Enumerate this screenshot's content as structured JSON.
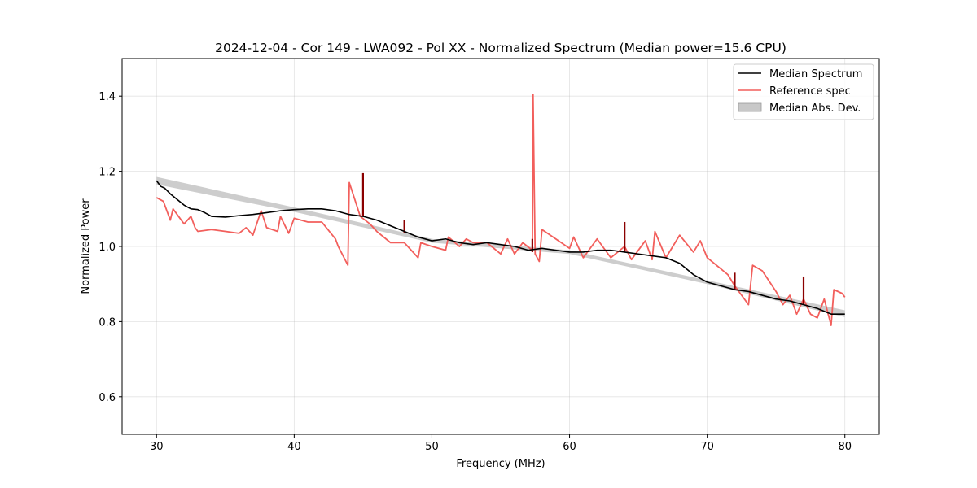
{
  "chart_data": {
    "type": "line",
    "title": "2024-12-04 - Cor 149 - LWA092 - Pol XX - Normalized Spectrum (Median power=15.6 CPU)",
    "xlabel": "Frequency (MHz)",
    "ylabel": "Normalized Power",
    "xlim": [
      27.5,
      82.5
    ],
    "ylim": [
      0.5,
      1.5
    ],
    "x_ticks": [
      30,
      40,
      50,
      60,
      70,
      80
    ],
    "y_ticks": [
      0.6,
      0.8,
      1.0,
      1.2,
      1.4
    ],
    "x_tick_labels": [
      "30",
      "40",
      "50",
      "60",
      "70",
      "80"
    ],
    "y_tick_labels": [
      "0.6",
      "0.8",
      "1.0",
      "1.2",
      "1.4"
    ],
    "grid": true,
    "legend_position": "upper-right",
    "legend": [
      "Median Spectrum",
      "Reference spec",
      "Median Abs. Dev."
    ],
    "colors": {
      "median": "#000000",
      "reference": "#f25f5c",
      "mad_fill": "#c8c8c8",
      "spike": "#8b0000"
    },
    "series": [
      {
        "name": "Median Spectrum",
        "x": [
          30.0,
          30.3,
          30.6,
          31.0,
          31.5,
          32.0,
          32.5,
          33.0,
          33.5,
          34.0,
          35.0,
          36.0,
          37.0,
          38.0,
          39.0,
          40.0,
          41.0,
          42.0,
          43.0,
          44.0,
          45.0,
          46.0,
          47.0,
          48.0,
          49.0,
          50.0,
          51.0,
          52.0,
          53.0,
          54.0,
          55.0,
          56.0,
          57.0,
          58.0,
          59.0,
          60.0,
          61.0,
          62.0,
          63.0,
          64.0,
          65.0,
          66.0,
          67.0,
          68.0,
          69.0,
          70.0,
          71.0,
          72.0,
          73.0,
          74.0,
          75.0,
          76.0,
          77.0,
          78.0,
          79.0,
          80.0
        ],
        "values": [
          1.175,
          1.16,
          1.155,
          1.14,
          1.125,
          1.11,
          1.1,
          1.098,
          1.09,
          1.08,
          1.078,
          1.082,
          1.085,
          1.09,
          1.095,
          1.098,
          1.1,
          1.1,
          1.095,
          1.085,
          1.08,
          1.07,
          1.055,
          1.04,
          1.025,
          1.015,
          1.02,
          1.01,
          1.005,
          1.01,
          1.005,
          1.0,
          0.99,
          0.995,
          0.99,
          0.985,
          0.985,
          0.99,
          0.99,
          0.985,
          0.98,
          0.975,
          0.97,
          0.955,
          0.925,
          0.905,
          0.895,
          0.885,
          0.88,
          0.87,
          0.86,
          0.855,
          0.845,
          0.835,
          0.82,
          0.82
        ]
      },
      {
        "name": "Reference spec",
        "x": [
          30.0,
          30.5,
          31.0,
          31.2,
          31.6,
          32.0,
          32.5,
          32.8,
          33.0,
          34.0,
          35.0,
          36.0,
          36.5,
          37.0,
          37.6,
          38.0,
          38.8,
          39.0,
          39.6,
          40.0,
          41.0,
          42.0,
          43.0,
          43.2,
          43.9,
          44.0,
          44.8,
          45.5,
          46.0,
          47.0,
          48.0,
          49.0,
          49.2,
          50.0,
          51.0,
          51.2,
          52.0,
          52.5,
          53.0,
          54.0,
          55.0,
          55.5,
          56.0,
          56.6,
          57.3,
          57.35,
          57.5,
          57.8,
          58.0,
          59.0,
          60.0,
          60.3,
          61.0,
          62.0,
          63.0,
          64.0,
          64.5,
          65.5,
          66.0,
          66.2,
          67.0,
          68.0,
          69.0,
          69.5,
          70.0,
          71.0,
          71.5,
          72.0,
          73.0,
          73.3,
          74.0,
          75.0,
          75.5,
          76.0,
          76.5,
          77.0,
          77.5,
          78.0,
          78.5,
          79.0,
          79.2,
          79.8,
          80.0
        ],
        "values": [
          1.13,
          1.12,
          1.07,
          1.1,
          1.08,
          1.06,
          1.08,
          1.05,
          1.04,
          1.045,
          1.04,
          1.035,
          1.05,
          1.03,
          1.095,
          1.05,
          1.04,
          1.08,
          1.035,
          1.075,
          1.065,
          1.065,
          1.02,
          1.0,
          0.95,
          1.17,
          1.08,
          1.06,
          1.04,
          1.01,
          1.01,
          0.97,
          1.01,
          1.0,
          0.99,
          1.025,
          1.0,
          1.02,
          1.01,
          1.01,
          0.98,
          1.02,
          0.98,
          1.01,
          0.99,
          1.405,
          0.98,
          0.96,
          1.045,
          1.02,
          0.995,
          1.025,
          0.97,
          1.02,
          0.97,
          1.0,
          0.965,
          1.015,
          0.965,
          1.04,
          0.97,
          1.03,
          0.985,
          1.015,
          0.97,
          0.94,
          0.925,
          0.895,
          0.845,
          0.95,
          0.935,
          0.88,
          0.845,
          0.87,
          0.82,
          0.86,
          0.82,
          0.81,
          0.86,
          0.79,
          0.885,
          0.875,
          0.865
        ]
      }
    ],
    "mad_band": {
      "x": [
        30.0,
        40.0,
        50.0,
        60.0,
        70.0,
        80.0
      ],
      "lower": [
        1.165,
        1.092,
        1.01,
        0.98,
        0.9,
        0.812
      ],
      "upper": [
        1.185,
        1.104,
        1.02,
        0.99,
        0.91,
        0.83
      ]
    },
    "spikes": [
      {
        "x": 45.0,
        "low": 1.08,
        "high": 1.195
      },
      {
        "x": 48.0,
        "low": 1.035,
        "high": 1.07
      },
      {
        "x": 57.3,
        "low": 0.985,
        "high": 1.02
      },
      {
        "x": 64.0,
        "low": 0.985,
        "high": 1.065
      },
      {
        "x": 72.0,
        "low": 0.885,
        "high": 0.93
      },
      {
        "x": 77.0,
        "low": 0.845,
        "high": 0.92
      }
    ]
  }
}
